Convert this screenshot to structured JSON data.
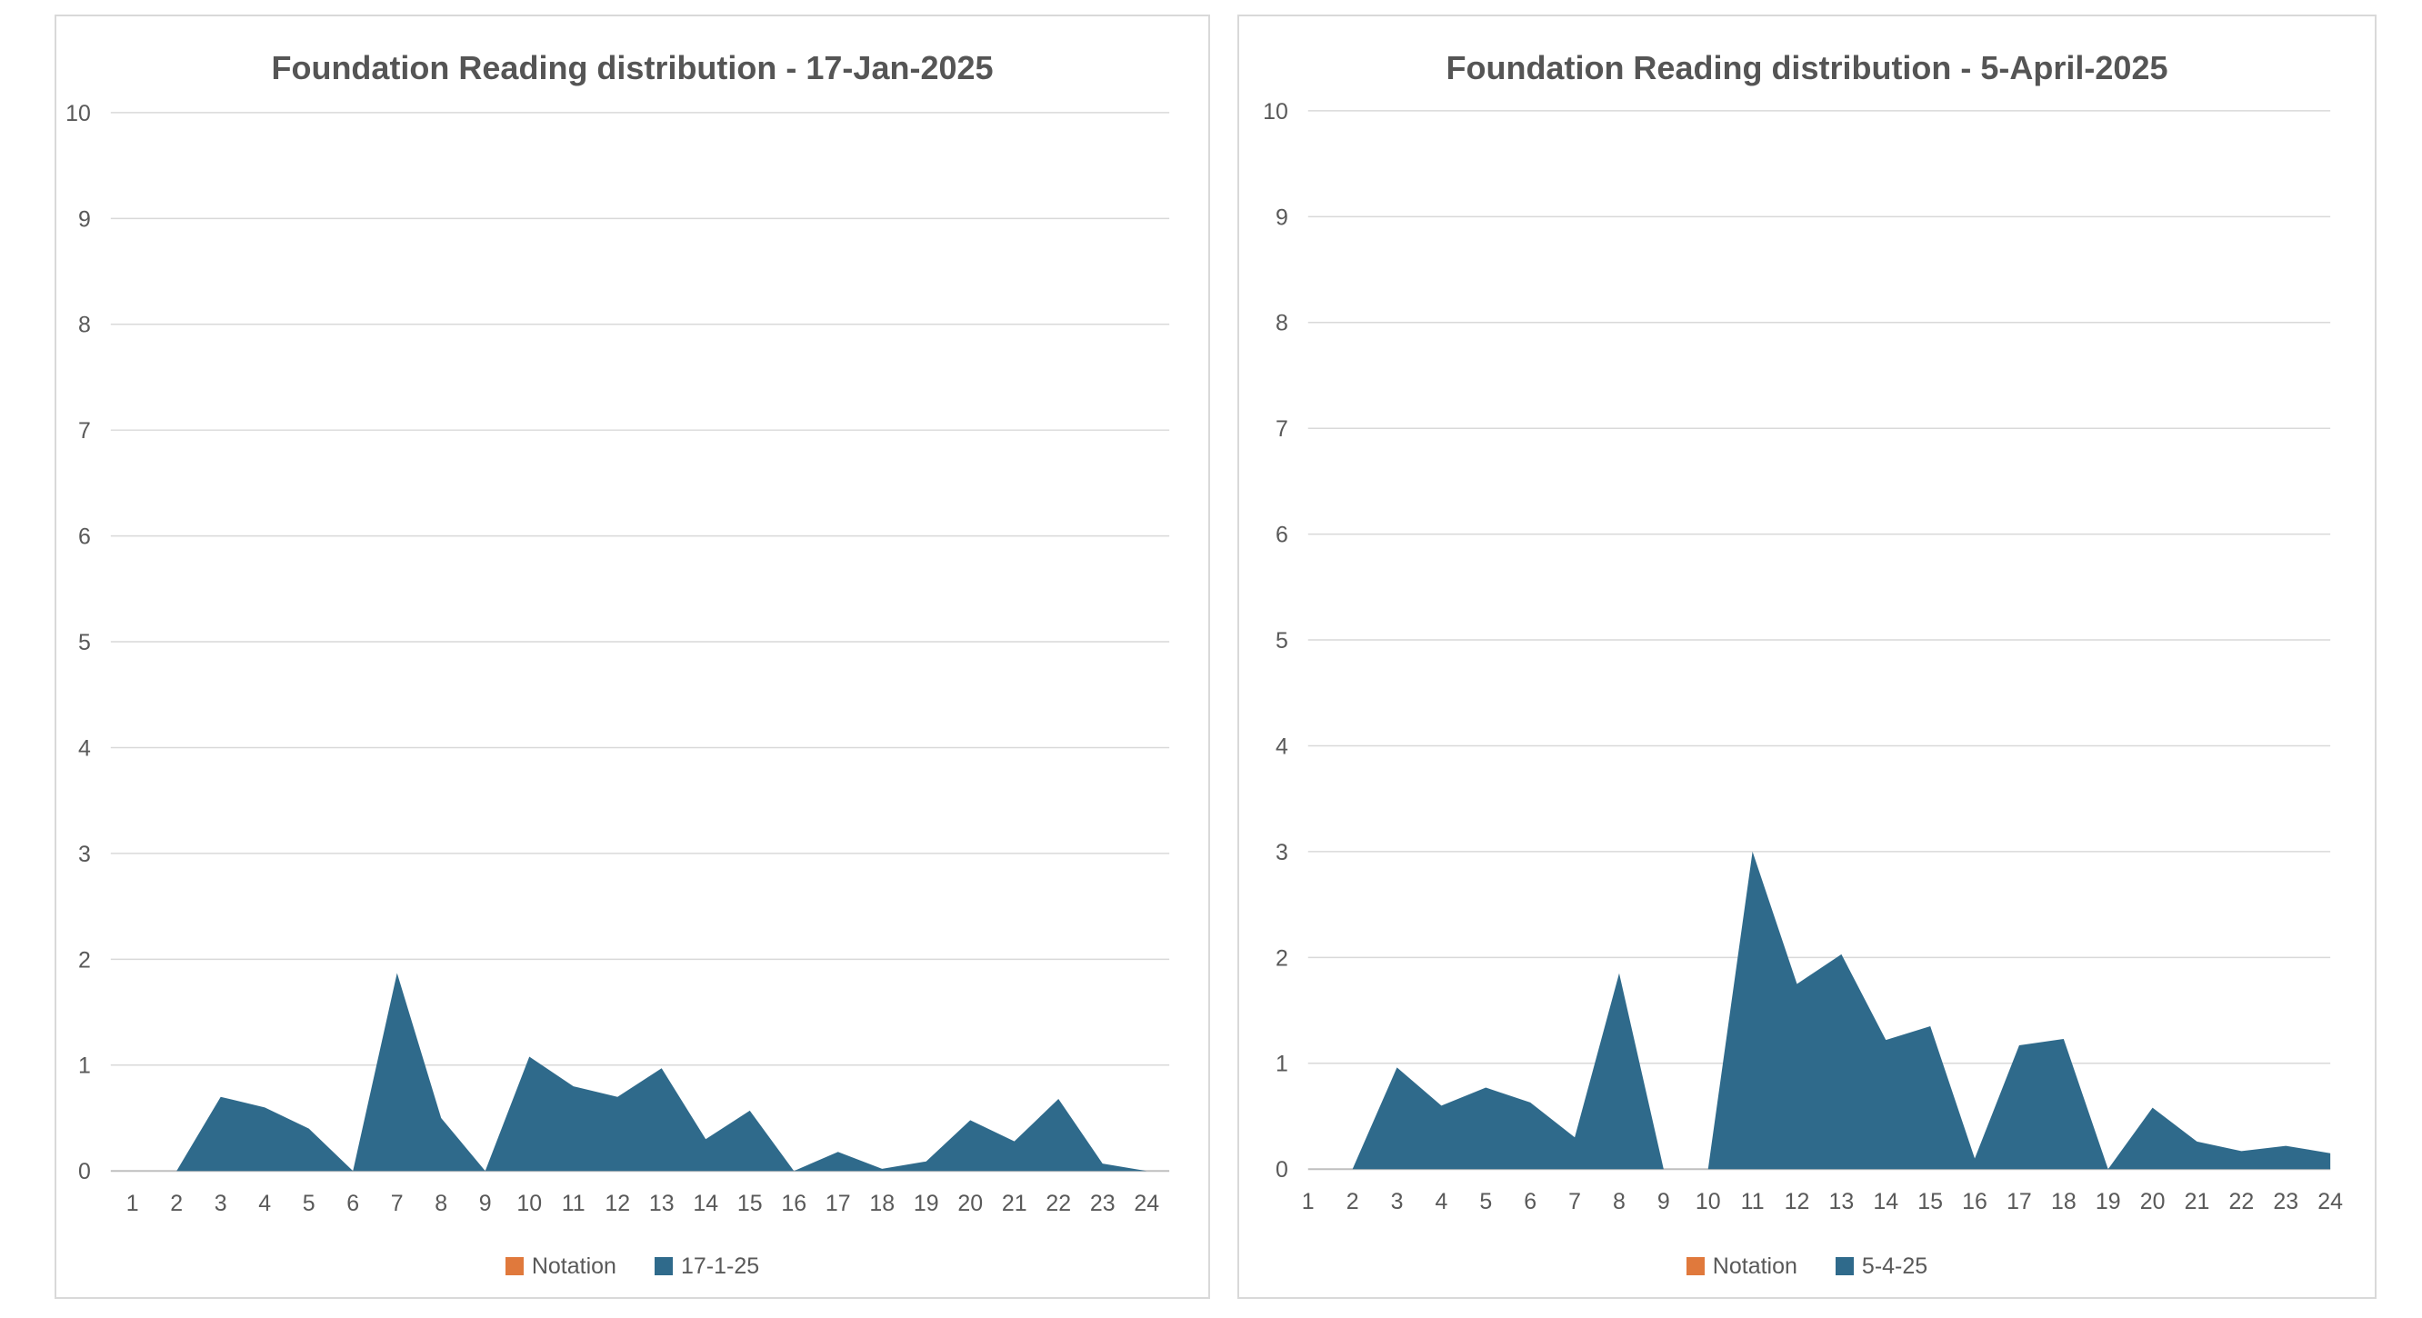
{
  "page": {
    "background": "#ffffff"
  },
  "colors": {
    "area_blue": "#2F6A8B",
    "notation_orange": "#E0793C",
    "gridline": "#D9D9D9",
    "axis_line": "#BFBFBF",
    "tick_text": "#595959",
    "title_text": "#555555",
    "card_border": "#D9D9D9"
  },
  "chart_data": [
    {
      "type": "area",
      "title": "Foundation Reading distribution - 17-Jan-2025",
      "x": [
        1,
        2,
        3,
        4,
        5,
        6,
        7,
        8,
        9,
        10,
        11,
        12,
        13,
        14,
        15,
        16,
        17,
        18,
        19,
        20,
        21,
        22,
        23,
        24
      ],
      "xlabel": "",
      "ylabel": "",
      "ylim": [
        0,
        10
      ],
      "yticks": [
        "0",
        "1",
        "2",
        "3",
        "4",
        "5",
        "6",
        "7",
        "8",
        "9",
        "10"
      ],
      "grid": "horizontal",
      "legend_position": "bottom",
      "legend": [
        {
          "label": "Notation",
          "color": "#E0793C"
        },
        {
          "label": "17-1-25",
          "color": "#2F6A8B"
        }
      ],
      "series": [
        {
          "name": "17-1-25",
          "color": "#2F6A8B",
          "values": [
            0,
            0,
            0.7,
            0.6,
            0.4,
            0,
            1.87,
            0.5,
            0,
            1.08,
            0.8,
            0.7,
            0.97,
            0.3,
            0.57,
            0,
            0.18,
            0.02,
            0.09,
            0.48,
            0.28,
            0.68,
            0.07,
            0
          ]
        }
      ]
    },
    {
      "type": "area",
      "title": "Foundation Reading distribution - 5-April-2025",
      "x": [
        1,
        2,
        3,
        4,
        5,
        6,
        7,
        8,
        9,
        10,
        11,
        12,
        13,
        14,
        15,
        16,
        17,
        18,
        19,
        20,
        21,
        22,
        23,
        24
      ],
      "xlabel": "",
      "ylabel": "",
      "ylim": [
        0,
        10
      ],
      "yticks": [
        "0",
        "1",
        "2",
        "3",
        "4",
        "5",
        "6",
        "7",
        "8",
        "9",
        "10"
      ],
      "grid": "horizontal",
      "legend_position": "bottom",
      "legend": [
        {
          "label": "Notation",
          "color": "#E0793C"
        },
        {
          "label": "5-4-25",
          "color": "#2F6A8B"
        }
      ],
      "series": [
        {
          "name": "5-4-25",
          "color": "#2F6A8B",
          "values": [
            0,
            0,
            0.96,
            0.6,
            0.77,
            0.63,
            0.3,
            1.85,
            0,
            0,
            3.0,
            1.75,
            2.03,
            1.22,
            1.35,
            0.1,
            1.17,
            1.23,
            0,
            0.58,
            0.26,
            0.17,
            0.22,
            0.15
          ]
        }
      ]
    }
  ]
}
